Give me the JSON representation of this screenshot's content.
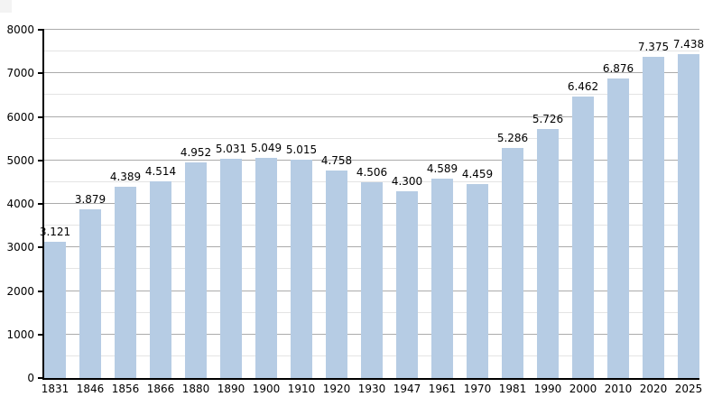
{
  "chart": {
    "background_color": "#ffffff",
    "bar_color": "#b6cce4",
    "major_grid_color": "#ababab",
    "minor_grid_color": "#e4e4e4",
    "axis_color": "#000000",
    "text_color": "#000000"
  },
  "chart_data": {
    "type": "bar",
    "title": "",
    "xlabel": "",
    "ylabel": "",
    "categories": [
      "1831",
      "1846",
      "1856",
      "1866",
      "1880",
      "1890",
      "1900",
      "1910",
      "1920",
      "1930",
      "1947",
      "1961",
      "1970",
      "1981",
      "1990",
      "2000",
      "2010",
      "2020",
      "2025"
    ],
    "values": [
      3121,
      3879,
      4389,
      4514,
      4952,
      5031,
      5049,
      5015,
      4758,
      4506,
      4300,
      4589,
      4459,
      5286,
      5726,
      6462,
      6876,
      7375,
      7438
    ],
    "value_labels": [
      "3.121",
      "3.879",
      "4.389",
      "4.514",
      "4.952",
      "5.031",
      "5.049",
      "5.015",
      "4.758",
      "4.506",
      "4.300",
      "4.589",
      "4.459",
      "5.286",
      "5.726",
      "6.462",
      "6.876",
      "7.375",
      "7.438"
    ],
    "ylim": [
      0,
      8000
    ],
    "ytick_step": 1000,
    "ytick_labels": [
      "0",
      "1000",
      "2000",
      "3000",
      "4000",
      "5000",
      "6000",
      "7000",
      "8000"
    ],
    "minor_grid_step": 500,
    "grid": "horizontal, major and minor",
    "legend": "none"
  }
}
